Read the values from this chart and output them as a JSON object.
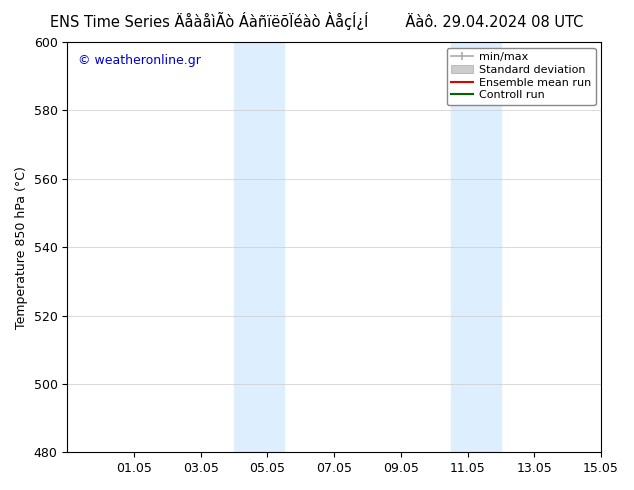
{
  "title": "ENS Time Series ÄåàåìÃò ÁàñïëõÏéàò ÀåçÍ¿Í",
  "title_right": "Äàô. 29.04.2024 08 UTC",
  "ylabel": "Temperature 850 hPa (°C)",
  "ylim": [
    480,
    600
  ],
  "yticks": [
    480,
    500,
    520,
    540,
    560,
    580,
    600
  ],
  "xlim": [
    0,
    16
  ],
  "xtick_labels": [
    "01.05",
    "03.05",
    "05.05",
    "07.05",
    "09.05",
    "11.05",
    "13.05",
    "15.05"
  ],
  "xtick_positions": [
    2,
    4,
    6,
    8,
    10,
    12,
    14,
    16
  ],
  "shaded_bands": [
    {
      "x_start": 5.0,
      "x_end": 6.5,
      "color": "#ddeeff"
    },
    {
      "x_start": 11.5,
      "x_end": 13.0,
      "color": "#ddeeff"
    }
  ],
  "watermark": "© weatheronline.gr",
  "watermark_color": "#0000cc",
  "bg_color": "#ffffff",
  "plot_bg_color": "#ffffff",
  "grid_color": "#cccccc",
  "title_fontsize": 10.5,
  "label_fontsize": 9,
  "tick_fontsize": 9,
  "legend_fontsize": 8
}
